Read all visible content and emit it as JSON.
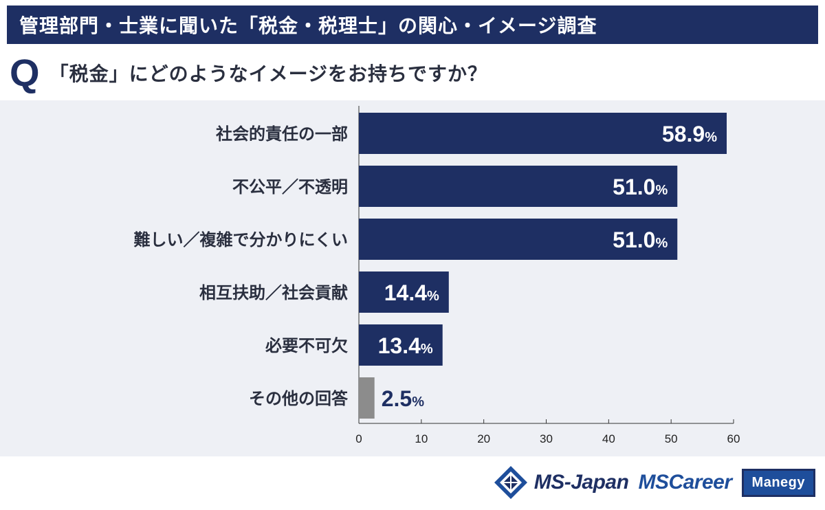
{
  "header": {
    "title": "管理部門・士業に聞いた「税金・税理士」の関心・イメージ調査"
  },
  "question": {
    "mark": "Q",
    "text": "「税金」にどのようなイメージをお持ちですか？"
  },
  "colors": {
    "primary_bar": "#1e2f63",
    "other_bar": "#8c8c8c",
    "panel_bg": "#eef0f5",
    "header_bg": "#1e2f63"
  },
  "chart_data": {
    "type": "bar",
    "orientation": "horizontal",
    "title": "「税金」にどのようなイメージをお持ちですか？",
    "categories": [
      "社会的責任の一部",
      "不公平／不透明",
      "難しい／複雑で分かりにくい",
      "相互扶助／社会貢献",
      "必要不可欠",
      "その他の回答"
    ],
    "values": [
      58.9,
      51.0,
      51.0,
      14.4,
      13.4,
      2.5
    ],
    "value_labels": [
      "58.9",
      "51.0",
      "51.0",
      "14.4",
      "13.4",
      "2.5"
    ],
    "unit": "%",
    "xlim": [
      0,
      60
    ],
    "xticks": [
      0,
      10,
      20,
      30,
      40,
      50,
      60
    ],
    "grid": false
  },
  "footer": {
    "logo_msjapan": "MS-Japan",
    "logo_mscareer": "MSCareer",
    "logo_manegy": "Manegy"
  }
}
